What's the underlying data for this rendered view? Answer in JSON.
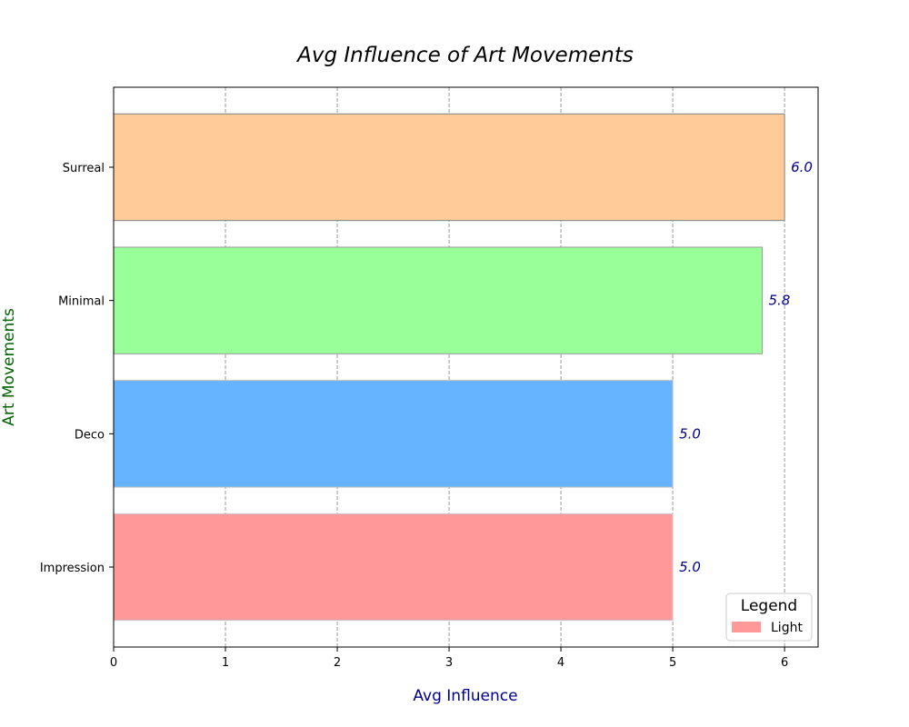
{
  "chart_data": {
    "type": "bar",
    "orientation": "horizontal",
    "title": "Avg Influence of Art Movements",
    "xlabel": "Avg Influence",
    "ylabel": "Art Movements",
    "categories": [
      "Impression",
      "Deco",
      "Minimal",
      "Surreal"
    ],
    "values": [
      5.0,
      5.0,
      5.8,
      6.0
    ],
    "data_labels": [
      "5.0",
      "5.0",
      "5.8",
      "6.0"
    ],
    "bar_colors": [
      "#ff9999",
      "#66b3ff",
      "#99ff99",
      "#ffcc99"
    ],
    "bar_edge_colors": [
      "#cccccc",
      "#bbbbbb",
      "#999999",
      "#808080"
    ],
    "xlim": [
      0,
      6.3
    ],
    "xticks": [
      0,
      1,
      2,
      3,
      4,
      5,
      6
    ],
    "xtick_labels": [
      "0",
      "1",
      "2",
      "3",
      "4",
      "5",
      "6"
    ],
    "grid": "x-dashed",
    "legend": {
      "title": "Legend",
      "placement": "bottom-right",
      "entries": [
        {
          "label": "Light",
          "color": "#ff9999"
        }
      ]
    },
    "colors": {
      "title": "#000000",
      "xlabel": "#00008b",
      "ylabel": "#006400",
      "data_label": "#00008b"
    }
  }
}
